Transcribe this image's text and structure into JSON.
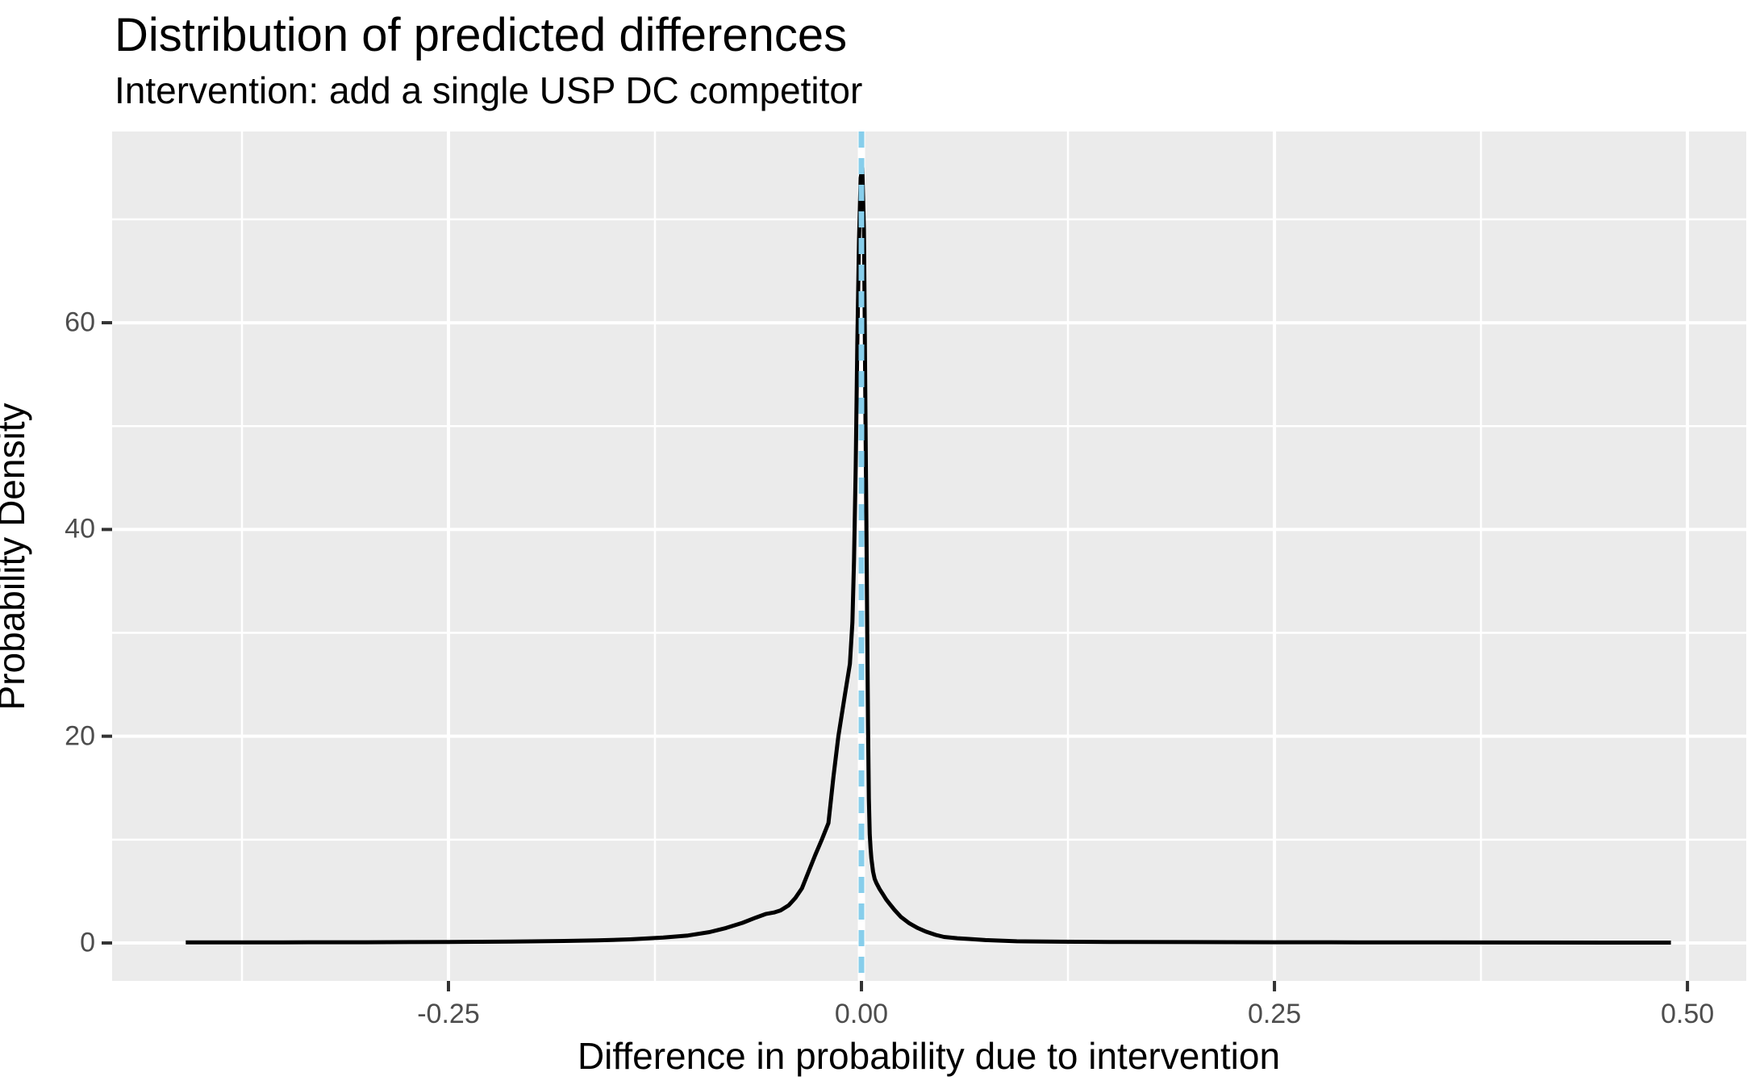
{
  "title": "Distribution of predicted differences",
  "subtitle": "Intervention: add a single USP DC competitor",
  "chart_data": {
    "type": "line",
    "title": "Distribution of predicted differences",
    "subtitle": "Intervention: add a single USP DC competitor",
    "xlabel": "Difference in probability due to intervention",
    "ylabel": "Probability Density",
    "legend": "none",
    "grid": "on",
    "panel_bg": "#EBEBEB",
    "grid_color": "#FFFFFF",
    "text_color": "#000000",
    "tick_label_color": "#4D4D4D",
    "tick_mark_color": "#333333",
    "x_axis": {
      "range": [
        -0.4536,
        0.5356
      ],
      "major_ticks": [
        -0.25,
        0,
        0.25,
        0.5
      ],
      "major_labels": [
        "-0.25",
        "0.00",
        "0.25",
        "0.50"
      ],
      "minor_ticks": [
        -0.375,
        -0.125,
        0.125,
        0.375
      ]
    },
    "y_axis": {
      "range": [
        -3.67,
        78.5
      ],
      "major_ticks": [
        0,
        20,
        40,
        60
      ],
      "major_labels": [
        "0",
        "20",
        "40",
        "60"
      ],
      "minor_ticks": [
        10,
        30,
        50,
        70
      ]
    },
    "reference_line": {
      "x": 0,
      "style": "dashed",
      "color": "#87CEEB",
      "underlay_color": "#FFFFFF"
    },
    "peak": {
      "x": 0,
      "density": 75
    },
    "series": [
      {
        "name": "predicted-difference-density",
        "color": "#000000",
        "points": [
          [
            -0.409,
            0.05
          ],
          [
            -0.38,
            0.055
          ],
          [
            -0.35,
            0.06
          ],
          [
            -0.32,
            0.065
          ],
          [
            -0.3,
            0.07
          ],
          [
            -0.27,
            0.085
          ],
          [
            -0.25,
            0.1
          ],
          [
            -0.22,
            0.12
          ],
          [
            -0.2,
            0.15
          ],
          [
            -0.18,
            0.19
          ],
          [
            -0.16,
            0.25
          ],
          [
            -0.14,
            0.35
          ],
          [
            -0.12,
            0.52
          ],
          [
            -0.105,
            0.72
          ],
          [
            -0.092,
            1.05
          ],
          [
            -0.082,
            1.45
          ],
          [
            -0.072,
            1.95
          ],
          [
            -0.064,
            2.45
          ],
          [
            -0.058,
            2.8
          ],
          [
            -0.053,
            2.95
          ],
          [
            -0.049,
            3.15
          ],
          [
            -0.044,
            3.65
          ],
          [
            -0.04,
            4.35
          ],
          [
            -0.036,
            5.3
          ],
          [
            -0.032,
            6.9
          ],
          [
            -0.028,
            8.5
          ],
          [
            -0.024,
            10
          ],
          [
            -0.02,
            11.6
          ],
          [
            -0.017,
            16
          ],
          [
            -0.014,
            20
          ],
          [
            -0.01,
            24
          ],
          [
            -0.007,
            27
          ],
          [
            -0.0055,
            31
          ],
          [
            -0.0045,
            37
          ],
          [
            -0.0035,
            46
          ],
          [
            -0.0025,
            58
          ],
          [
            -0.0015,
            68
          ],
          [
            -0.0005,
            74
          ],
          [
            0.0005,
            75
          ],
          [
            0.0015,
            69
          ],
          [
            0.002,
            60
          ],
          [
            0.0025,
            50
          ],
          [
            0.003,
            40
          ],
          [
            0.0035,
            30
          ],
          [
            0.004,
            21
          ],
          [
            0.0045,
            14
          ],
          [
            0.005,
            10.5
          ],
          [
            0.0055,
            9.2
          ],
          [
            0.006,
            8.2
          ],
          [
            0.007,
            6.9
          ],
          [
            0.008,
            6.2
          ],
          [
            0.009,
            5.8
          ],
          [
            0.011,
            5.2
          ],
          [
            0.013,
            4.7
          ],
          [
            0.015,
            4.2
          ],
          [
            0.017,
            3.8
          ],
          [
            0.02,
            3.2
          ],
          [
            0.024,
            2.5
          ],
          [
            0.029,
            1.9
          ],
          [
            0.034,
            1.45
          ],
          [
            0.039,
            1.1
          ],
          [
            0.045,
            0.78
          ],
          [
            0.05,
            0.58
          ],
          [
            0.058,
            0.46
          ],
          [
            0.065,
            0.39
          ],
          [
            0.075,
            0.28
          ],
          [
            0.094,
            0.16
          ],
          [
            0.12,
            0.12
          ],
          [
            0.15,
            0.1
          ],
          [
            0.2,
            0.08
          ],
          [
            0.25,
            0.07
          ],
          [
            0.3,
            0.06
          ],
          [
            0.35,
            0.05
          ],
          [
            0.4,
            0.045
          ],
          [
            0.45,
            0.04
          ],
          [
            0.49,
            0.04
          ]
        ]
      }
    ]
  }
}
